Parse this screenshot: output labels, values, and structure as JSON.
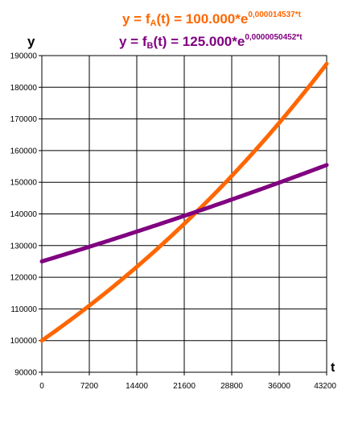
{
  "chart_data": {
    "type": "line",
    "ylabel": "y",
    "xlabel": "t",
    "xlim": [
      0,
      43200
    ],
    "ylim": [
      90000,
      190000
    ],
    "x_ticks": [
      0,
      7200,
      14400,
      21600,
      28800,
      36000,
      43200
    ],
    "y_ticks": [
      90000,
      100000,
      110000,
      120000,
      130000,
      140000,
      150000,
      160000,
      170000,
      180000,
      190000
    ],
    "x_tick_labels": [
      "0",
      "7200",
      "14400",
      "21600",
      "28800",
      "36000",
      "43200"
    ],
    "y_tick_labels": [
      "90000",
      "100000",
      "110000",
      "120000",
      "130000",
      "140000",
      "150000",
      "160000",
      "170000",
      "180000",
      "190000"
    ],
    "grid": true,
    "series": [
      {
        "name": "fA",
        "color": "#ff6600",
        "a": 100000,
        "k": 1.4537e-05,
        "x": [
          0,
          7200,
          14400,
          21600,
          28800,
          36000,
          43200
        ],
        "values": [
          100000,
          111041,
          123302,
          136917,
          152035,
          168822,
          187463
        ],
        "equation": {
          "prefix": "y = f",
          "sub": "A",
          "mid": "(t) = 100.000*e",
          "sup": "0,000014537*t"
        }
      },
      {
        "name": "fB",
        "color": "#800080",
        "a": 125000,
        "k": 5.0452e-06,
        "x": [
          0,
          7200,
          14400,
          21600,
          28800,
          36000,
          43200
        ],
        "values": [
          125000,
          129620,
          134411,
          139379,
          144531,
          149873,
          155413
        ],
        "equation": {
          "prefix": "y = f",
          "sub": "B",
          "mid": "(t) = 125.000*e",
          "sup": "0,0000050452*t"
        }
      }
    ]
  }
}
